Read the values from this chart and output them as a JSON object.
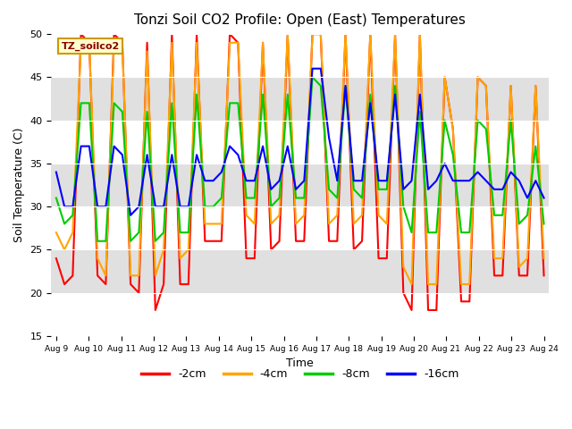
{
  "title": "Tonzi Soil CO2 Profile: Open (East) Temperatures",
  "xlabel": "Time",
  "ylabel": "Soil Temperature (C)",
  "ylim": [
    15,
    50
  ],
  "fig_bg_color": "#ffffff",
  "plot_bg_color": "#e8e8e8",
  "legend_label": "TZ_soilco2",
  "series": {
    "2cm": {
      "color": "#ff0000",
      "label": "-2cm",
      "x": [
        0,
        0.5,
        1,
        1.5,
        2,
        2.5,
        3,
        3.5,
        4,
        4.5,
        5,
        5.5,
        6,
        6.5,
        7,
        7.5,
        8,
        8.5,
        9,
        9.5,
        10,
        10.5,
        11,
        11.5,
        12,
        12.5,
        13,
        13.5,
        14,
        14.5,
        15,
        15.5,
        16,
        16.5,
        17,
        17.5,
        18,
        18.5,
        19,
        19.5,
        20,
        20.5,
        21,
        21.5,
        22,
        22.5,
        23,
        23.5,
        24,
        24.5,
        25,
        25.5,
        26,
        26.5,
        27,
        27.5,
        28,
        28.5,
        29,
        29.5
      ],
      "y": [
        24,
        21,
        22,
        50,
        49,
        22,
        21,
        50,
        49,
        21,
        20,
        49,
        18,
        21,
        50,
        21,
        21,
        50,
        26,
        26,
        26,
        50,
        49,
        24,
        24,
        49,
        25,
        26,
        50,
        26,
        26,
        50,
        50,
        26,
        26,
        50,
        25,
        26,
        50,
        24,
        24,
        50,
        20,
        18,
        50,
        18,
        18,
        45,
        39,
        19,
        19,
        45,
        44,
        22,
        22,
        44,
        22,
        22,
        44,
        22
      ]
    },
    "4cm": {
      "color": "#ffa500",
      "label": "-4cm",
      "x": [
        0,
        0.5,
        1,
        1.5,
        2,
        2.5,
        3,
        3.5,
        4,
        4.5,
        5,
        5.5,
        6,
        6.5,
        7,
        7.5,
        8,
        8.5,
        9,
        9.5,
        10,
        10.5,
        11,
        11.5,
        12,
        12.5,
        13,
        13.5,
        14,
        14.5,
        15,
        15.5,
        16,
        16.5,
        17,
        17.5,
        18,
        18.5,
        19,
        19.5,
        20,
        20.5,
        21,
        21.5,
        22,
        22.5,
        23,
        23.5,
        24,
        24.5,
        25,
        25.5,
        26,
        26.5,
        27,
        27.5,
        28,
        28.5,
        29,
        29.5
      ],
      "y": [
        27,
        25,
        27,
        49,
        49,
        24,
        22,
        49,
        49,
        22,
        22,
        48,
        22,
        25,
        49,
        24,
        25,
        49,
        28,
        28,
        28,
        49,
        49,
        29,
        28,
        49,
        28,
        29,
        50,
        28,
        29,
        50,
        50,
        28,
        29,
        50,
        28,
        29,
        50,
        29,
        28,
        50,
        23,
        21,
        50,
        21,
        21,
        45,
        39,
        21,
        21,
        45,
        44,
        24,
        24,
        44,
        23,
        24,
        44,
        24
      ]
    },
    "8cm": {
      "color": "#00cc00",
      "label": "-8cm",
      "x": [
        0,
        0.5,
        1,
        1.5,
        2,
        2.5,
        3,
        3.5,
        4,
        4.5,
        5,
        5.5,
        6,
        6.5,
        7,
        7.5,
        8,
        8.5,
        9,
        9.5,
        10,
        10.5,
        11,
        11.5,
        12,
        12.5,
        13,
        13.5,
        14,
        14.5,
        15,
        15.5,
        16,
        16.5,
        17,
        17.5,
        18,
        18.5,
        19,
        19.5,
        20,
        20.5,
        21,
        21.5,
        22,
        22.5,
        23,
        23.5,
        24,
        24.5,
        25,
        25.5,
        26,
        26.5,
        27,
        27.5,
        28,
        28.5,
        29,
        29.5
      ],
      "y": [
        31,
        28,
        29,
        42,
        42,
        26,
        26,
        42,
        41,
        26,
        27,
        41,
        26,
        27,
        42,
        27,
        27,
        43,
        30,
        30,
        31,
        42,
        42,
        31,
        31,
        43,
        30,
        31,
        43,
        31,
        31,
        45,
        44,
        32,
        31,
        44,
        32,
        31,
        43,
        32,
        32,
        44,
        30,
        27,
        41,
        27,
        27,
        40,
        36,
        27,
        27,
        40,
        39,
        29,
        29,
        40,
        28,
        29,
        37,
        28
      ]
    },
    "16cm": {
      "color": "#0000ff",
      "label": "-16cm",
      "x": [
        0,
        0.5,
        1,
        1.5,
        2,
        2.5,
        3,
        3.5,
        4,
        4.5,
        5,
        5.5,
        6,
        6.5,
        7,
        7.5,
        8,
        8.5,
        9,
        9.5,
        10,
        10.5,
        11,
        11.5,
        12,
        12.5,
        13,
        13.5,
        14,
        14.5,
        15,
        15.5,
        16,
        16.5,
        17,
        17.5,
        18,
        18.5,
        19,
        19.5,
        20,
        20.5,
        21,
        21.5,
        22,
        22.5,
        23,
        23.5,
        24,
        24.5,
        25,
        25.5,
        26,
        26.5,
        27,
        27.5,
        28,
        28.5,
        29,
        29.5
      ],
      "y": [
        34,
        30,
        30,
        37,
        37,
        30,
        30,
        37,
        36,
        29,
        30,
        36,
        30,
        30,
        36,
        30,
        30,
        36,
        33,
        33,
        34,
        37,
        36,
        33,
        33,
        37,
        32,
        33,
        37,
        32,
        33,
        46,
        46,
        38,
        33,
        44,
        33,
        33,
        42,
        33,
        33,
        43,
        32,
        33,
        43,
        32,
        33,
        35,
        33,
        33,
        33,
        34,
        33,
        32,
        32,
        34,
        33,
        31,
        33,
        31
      ]
    }
  },
  "xtick_labels": [
    "Aug 9",
    "Aug 10",
    "Aug 11",
    "Aug 12",
    "Aug 13",
    "Aug 14",
    "Aug 15",
    "Aug 16",
    "Aug 17",
    "Aug 18",
    "Aug 19",
    "Aug 20",
    "Aug 21",
    "Aug 22",
    "Aug 23",
    "Aug 24"
  ],
  "ytick_positions": [
    15,
    20,
    25,
    30,
    35,
    40,
    45,
    50
  ],
  "grid_color": "#cccccc",
  "linewidth": 1.5,
  "band_colors": [
    "#ffffff",
    "#e0e0e0"
  ]
}
